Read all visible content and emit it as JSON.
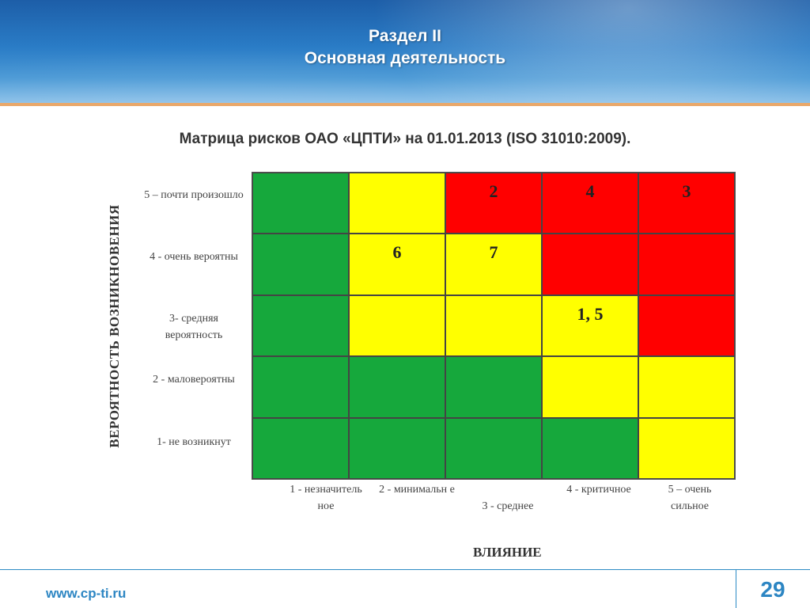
{
  "header": {
    "section": "Раздел II",
    "subtitle": "Основная деятельность"
  },
  "matrix": {
    "title": "Матрица рисков ОАО «ЦПТИ» на 01.01.2013 (ISO 31010:2009).",
    "y_axis_label": "ВЕРОЯТНОСТЬ ВОЗНИКНОВЕНИЯ",
    "x_axis_label": "ВЛИЯНИЕ",
    "row_labels": [
      "5 – почти произошло",
      "4 - очень вероятны",
      "3- средняя вероятность",
      "2 - маловероятны",
      "1- не возникнут"
    ],
    "col_labels": [
      "1 - незначитель ное",
      "2 - минимальн е",
      "3 - среднее",
      "4 - критичное",
      "5 – очень сильное"
    ],
    "colors": {
      "green": "#16a83c",
      "yellow": "#ffff00",
      "red": "#ff0000"
    },
    "rows": [
      [
        {
          "color": "green",
          "text": ""
        },
        {
          "color": "yellow",
          "text": ""
        },
        {
          "color": "red",
          "text": "2"
        },
        {
          "color": "red",
          "text": "4"
        },
        {
          "color": "red",
          "text": "3"
        }
      ],
      [
        {
          "color": "green",
          "text": ""
        },
        {
          "color": "yellow",
          "text": "6"
        },
        {
          "color": "yellow",
          "text": "7"
        },
        {
          "color": "red",
          "text": ""
        },
        {
          "color": "red",
          "text": ""
        }
      ],
      [
        {
          "color": "green",
          "text": ""
        },
        {
          "color": "yellow",
          "text": ""
        },
        {
          "color": "yellow",
          "text": ""
        },
        {
          "color": "yellow",
          "text": "1, 5"
        },
        {
          "color": "red",
          "text": ""
        }
      ],
      [
        {
          "color": "green",
          "text": ""
        },
        {
          "color": "green",
          "text": ""
        },
        {
          "color": "green",
          "text": ""
        },
        {
          "color": "yellow",
          "text": ""
        },
        {
          "color": "yellow",
          "text": ""
        }
      ],
      [
        {
          "color": "green",
          "text": ""
        },
        {
          "color": "green",
          "text": ""
        },
        {
          "color": "green",
          "text": ""
        },
        {
          "color": "green",
          "text": ""
        },
        {
          "color": "yellow",
          "text": ""
        }
      ]
    ]
  },
  "footer": {
    "website": "www.cp-ti.ru",
    "page": "29"
  }
}
